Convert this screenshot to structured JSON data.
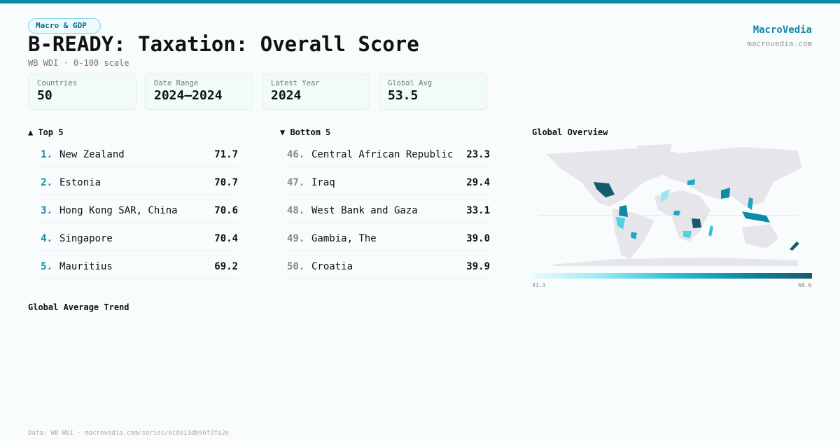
{
  "header": {
    "tag": "Macro & GDP",
    "title": "B-READY: Taxation: Overall Score",
    "subtitle": "WB WDI · 0-100 scale",
    "brand": "MacroVedia",
    "brand_url": "macrovedia.com"
  },
  "stats": [
    {
      "label": "Countries",
      "value": "50"
    },
    {
      "label": "Date Range",
      "value": "2024–2024"
    },
    {
      "label": "Latest Year",
      "value": "2024"
    },
    {
      "label": "Global Avg",
      "value": "53.5"
    }
  ],
  "top": {
    "title": "▲ Top 5",
    "items": [
      {
        "rank": "1.",
        "name": "New Zealand",
        "score": "71.7"
      },
      {
        "rank": "2.",
        "name": "Estonia",
        "score": "70.7"
      },
      {
        "rank": "3.",
        "name": "Hong Kong SAR, China",
        "score": "70.6"
      },
      {
        "rank": "4.",
        "name": "Singapore",
        "score": "70.4"
      },
      {
        "rank": "5.",
        "name": "Mauritius",
        "score": "69.2"
      }
    ]
  },
  "bottom": {
    "title": "▼ Bottom 5",
    "items": [
      {
        "rank": "46.",
        "name": "Central African Republic",
        "score": "23.3"
      },
      {
        "rank": "47.",
        "name": "Iraq",
        "score": "29.4"
      },
      {
        "rank": "48.",
        "name": "West Bank and Gaza",
        "score": "33.1"
      },
      {
        "rank": "49.",
        "name": "Gambia, The",
        "score": "39.0"
      },
      {
        "rank": "50.",
        "name": "Croatia",
        "score": "39.9"
      }
    ]
  },
  "map": {
    "title": "Global Overview",
    "legend_min": "41.3",
    "legend_max": "68.6",
    "colors": {
      "low": "#edfafc",
      "mid": "#2fc0d8",
      "high": "#175a6c",
      "land": "#e6e6ea"
    }
  },
  "trend": {
    "title": "Global Average Trend"
  },
  "footer": "Data: WB WDI · macrovedia.com/series/6c8e11db96f3fa2e"
}
